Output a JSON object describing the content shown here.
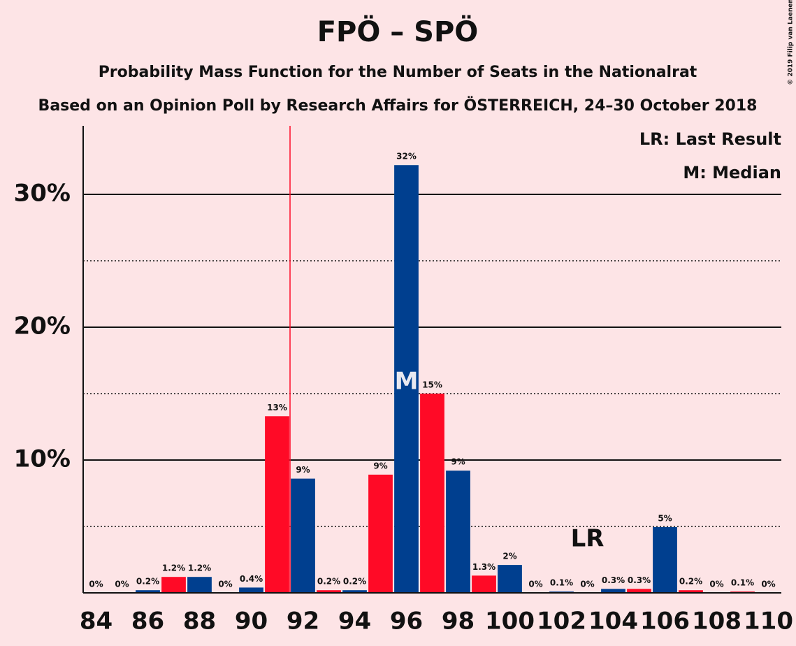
{
  "chart_data": {
    "type": "bar",
    "title": "FPÖ – SPÖ",
    "subtitle": "Probability Mass Function for the Number of Seats in the Nationalrat",
    "subtitle2": "Based on an Opinion Poll by Research Affairs for ÖSTERREICH, 24–30 October 2018",
    "credit": "© 2019 Filip van Laenen",
    "legend": [
      "LR: Last Result",
      "M: Median"
    ],
    "x": [
      84,
      85,
      86,
      87,
      88,
      89,
      90,
      91,
      92,
      93,
      94,
      95,
      96,
      97,
      98,
      99,
      100,
      101,
      102,
      103,
      104,
      105,
      106,
      107,
      108,
      109,
      110
    ],
    "values": [
      0,
      0,
      0.2,
      1.2,
      1.2,
      0,
      0.4,
      13.3,
      8.6,
      0.2,
      0.2,
      8.9,
      32.2,
      15.0,
      9.2,
      1.3,
      2.1,
      0,
      0.1,
      0,
      0.3,
      0.3,
      4.95,
      0.2,
      0,
      0.1,
      0
    ],
    "value_labels": [
      "0%",
      "0%",
      "0.2%",
      "1.2%",
      "1.2%",
      "0%",
      "0.4%",
      "13%",
      "9%",
      "0.2%",
      "0.2%",
      "9%",
      "32%",
      "15%",
      "9%",
      "1.3%",
      "2%",
      "0%",
      "0.1%",
      "0%",
      "0.3%",
      "0.3%",
      "5%",
      "0.2%",
      "0%",
      "0.1%",
      "0%"
    ],
    "colors": [
      "#003f8f",
      "#ff0a26",
      "#003f8f",
      "#ff0a26",
      "#003f8f",
      "#ff0a26",
      "#003f8f",
      "#ff0a26",
      "#003f8f",
      "#ff0a26",
      "#003f8f",
      "#ff0a26",
      "#003f8f",
      "#ff0a26",
      "#003f8f",
      "#ff0a26",
      "#003f8f",
      "#ff0a26",
      "#003f8f",
      "#ff0a26",
      "#003f8f",
      "#ff0a26",
      "#003f8f",
      "#ff0a26",
      "#003f8f",
      "#ff0a26",
      "#003f8f"
    ],
    "median": 96,
    "median_label": "M",
    "last_result": 103,
    "last_result_label": "LR",
    "majority": 92,
    "xlim": [
      83.5,
      110.5
    ],
    "xticks": [
      84,
      86,
      88,
      90,
      92,
      94,
      96,
      98,
      100,
      102,
      104,
      106,
      108,
      110
    ],
    "ylim": [
      0,
      35
    ],
    "yticks": [
      {
        "value": 10,
        "label": "10%"
      },
      {
        "value": 20,
        "label": "20%"
      },
      {
        "value": 30,
        "label": "30%"
      }
    ],
    "yminor": [
      5,
      15,
      25
    ],
    "grid": true
  }
}
